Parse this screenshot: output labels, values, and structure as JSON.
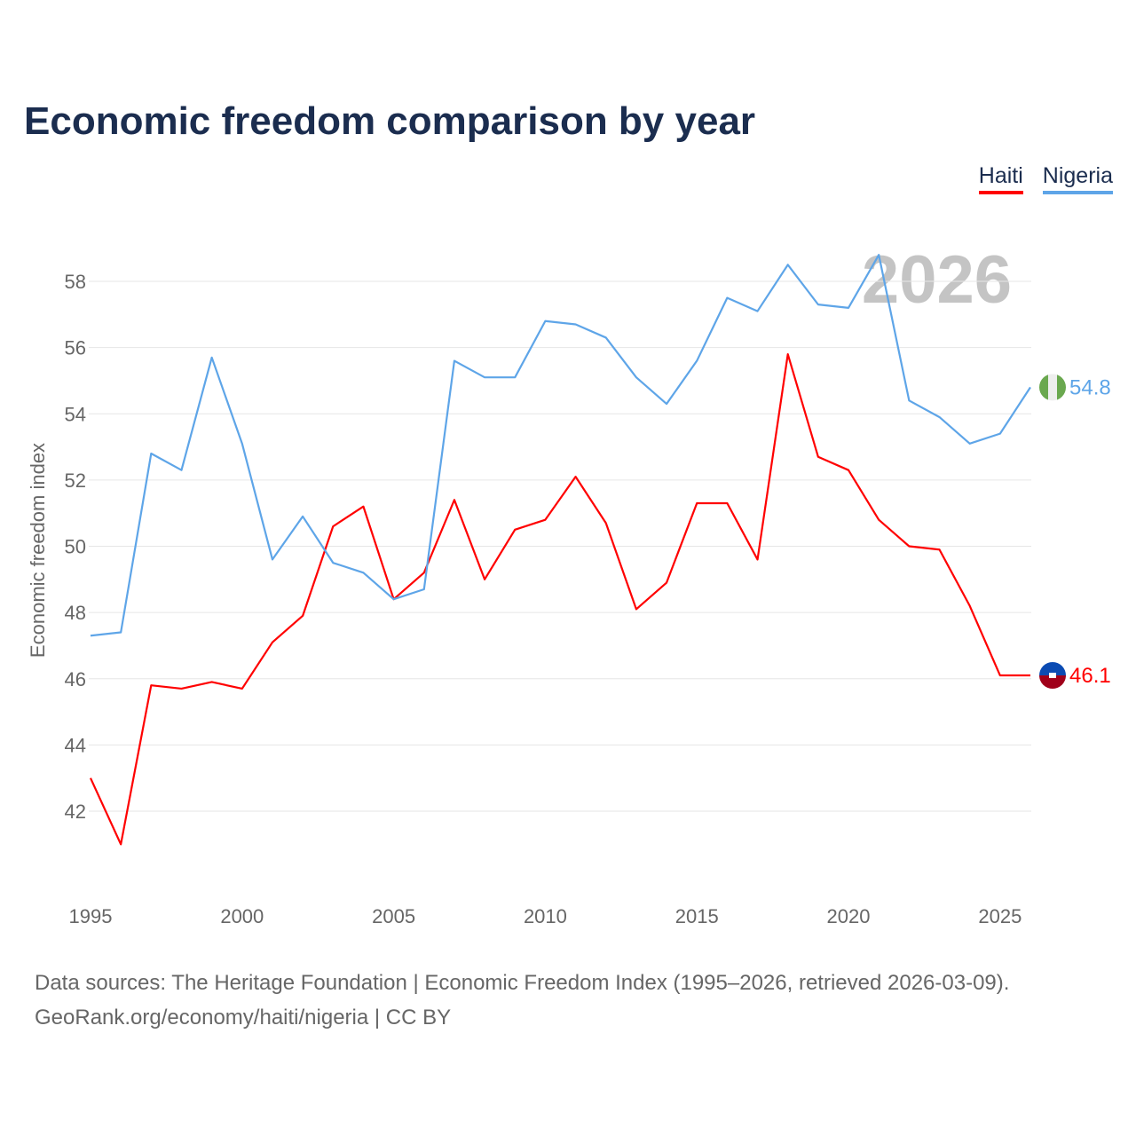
{
  "title": "Economic freedom comparison by year",
  "source_line1": "Data sources: The Heritage Foundation | Economic Freedom Index (1995–2026, retrieved 2026-03-09).",
  "source_line2": "GeoRank.org/economy/haiti/nigeria | CC BY",
  "chart_data": {
    "type": "line",
    "title": "Economic freedom comparison by year",
    "xlabel": "",
    "ylabel": "Economic freedom index",
    "watermark_year": "2026",
    "x": [
      1995,
      1996,
      1997,
      1998,
      1999,
      2000,
      2001,
      2002,
      2003,
      2004,
      2005,
      2006,
      2007,
      2008,
      2009,
      2010,
      2011,
      2012,
      2013,
      2014,
      2015,
      2016,
      2017,
      2018,
      2019,
      2020,
      2021,
      2022,
      2023,
      2024,
      2025,
      2026
    ],
    "xlim": [
      1995,
      2026
    ],
    "ylim": [
      40,
      59.2
    ],
    "xticks": [
      "1995",
      "2000",
      "2005",
      "2010",
      "2015",
      "2020",
      "2025"
    ],
    "yticks": [
      "42",
      "44",
      "46",
      "48",
      "50",
      "52",
      "54",
      "56",
      "58"
    ],
    "grid": true,
    "legend_position": "top-right",
    "series": [
      {
        "name": "Haiti",
        "color": "#ff0000",
        "end_label": "46.1",
        "values": [
          43.0,
          41.0,
          45.8,
          45.7,
          45.9,
          45.7,
          47.1,
          47.9,
          50.6,
          51.2,
          48.4,
          49.2,
          51.4,
          49.0,
          50.5,
          50.8,
          52.1,
          50.7,
          48.1,
          48.9,
          51.3,
          51.3,
          49.6,
          55.8,
          52.7,
          52.3,
          50.8,
          50.0,
          49.9,
          48.2,
          46.1,
          46.1
        ]
      },
      {
        "name": "Nigeria",
        "color": "#5ea5e8",
        "end_label": "54.8",
        "values": [
          47.3,
          47.4,
          52.8,
          52.3,
          55.7,
          53.1,
          49.6,
          50.9,
          49.5,
          49.2,
          48.4,
          48.7,
          55.6,
          55.1,
          55.1,
          56.8,
          56.7,
          56.3,
          55.1,
          54.3,
          55.6,
          57.5,
          57.1,
          58.5,
          57.3,
          57.2,
          58.8,
          54.4,
          53.9,
          53.1,
          53.4,
          54.8
        ]
      }
    ]
  }
}
